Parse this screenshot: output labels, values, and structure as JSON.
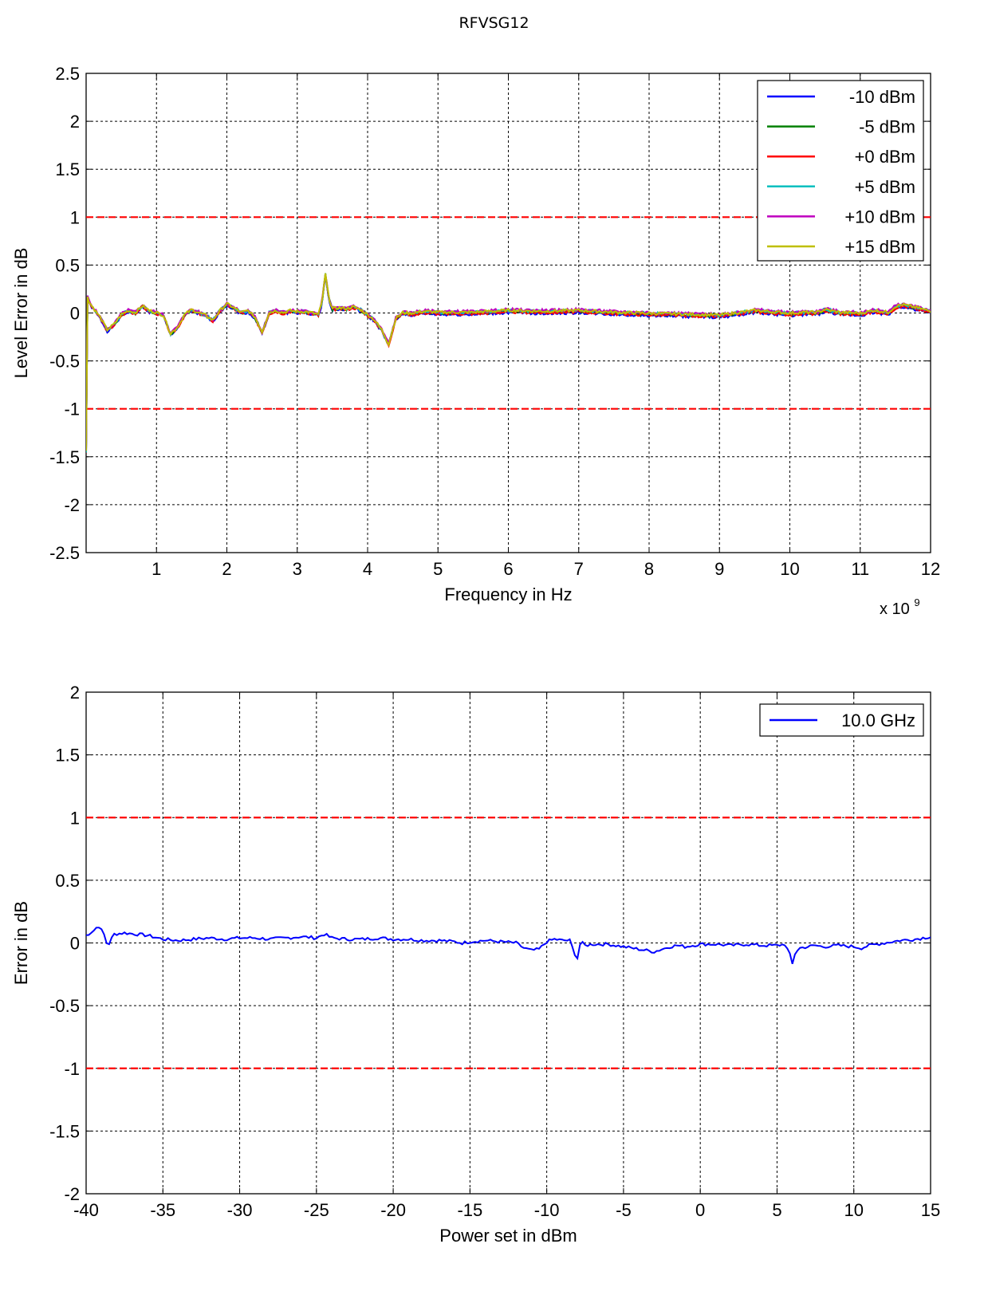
{
  "page": {
    "title": "RFVSG12"
  },
  "colors": {
    "limit": "#ff0000",
    "grid": "#000000",
    "series": {
      "-10 dBm": "#0000ff",
      "-5 dBm": "#008000",
      "+0 dBm": "#ff0000",
      "+5 dBm": "#00bfbf",
      "+10 dBm": "#bf00bf",
      "+15 dBm": "#bfbf00"
    },
    "power_sweep": "#0000ff"
  },
  "chart_data": [
    {
      "type": "line",
      "title": "",
      "xlabel": "Frequency in Hz",
      "ylabel": "Level Error in dB",
      "x_multiplier_label": "x 10",
      "x_multiplier_exponent": "9",
      "xlim": [
        0,
        12
      ],
      "ylim": [
        -2.5,
        2.5
      ],
      "grid": true,
      "legend_position": "top-right",
      "x_ticks": [
        1,
        2,
        3,
        4,
        5,
        6,
        7,
        8,
        9,
        10,
        11,
        12
      ],
      "x_tick_labels": [
        "1",
        "2",
        "3",
        "4",
        "5",
        "6",
        "7",
        "8",
        "9",
        "10",
        "11",
        "12"
      ],
      "y_ticks": [
        2.5,
        2,
        1.5,
        1,
        0.5,
        0,
        -0.5,
        -1,
        -1.5,
        -2,
        -2.5
      ],
      "y_tick_labels": [
        "2.5",
        "2",
        "1.5",
        "1",
        "0.5",
        "0",
        "-0.5",
        "-1",
        "-1.5",
        "-2",
        "-2.5"
      ],
      "limit_lines": [
        1,
        -1
      ],
      "base_profile": {
        "x": [
          0.0,
          0.02,
          0.05,
          0.1,
          0.2,
          0.3,
          0.4,
          0.5,
          0.6,
          0.7,
          0.8,
          0.9,
          1.0,
          1.1,
          1.2,
          1.3,
          1.4,
          1.5,
          1.6,
          1.7,
          1.8,
          1.9,
          2.0,
          2.1,
          2.2,
          2.3,
          2.4,
          2.5,
          2.6,
          2.7,
          2.8,
          2.9,
          3.0,
          3.1,
          3.2,
          3.3,
          3.35,
          3.4,
          3.45,
          3.5,
          3.6,
          3.7,
          3.8,
          3.9,
          4.0,
          4.1,
          4.2,
          4.3,
          4.4,
          4.5,
          4.6,
          4.7,
          4.8,
          5.0,
          5.5,
          6.0,
          6.5,
          7.0,
          7.5,
          8.0,
          8.5,
          9.0,
          9.5,
          10.0,
          10.2,
          10.4,
          10.5,
          10.7,
          11.0,
          11.2,
          11.4,
          11.5,
          11.6,
          11.8,
          12.0
        ],
        "y": [
          -1.45,
          0.17,
          0.1,
          0.05,
          -0.05,
          -0.18,
          -0.12,
          -0.02,
          0.02,
          0.0,
          0.07,
          0.02,
          0.0,
          -0.03,
          -0.22,
          -0.15,
          -0.02,
          0.03,
          0.0,
          -0.03,
          -0.08,
          0.02,
          0.09,
          0.05,
          0.0,
          0.02,
          -0.05,
          -0.2,
          0.0,
          0.02,
          0.0,
          0.02,
          0.01,
          0.01,
          0.0,
          -0.02,
          0.1,
          0.4,
          0.15,
          0.04,
          0.05,
          0.04,
          0.06,
          0.03,
          -0.02,
          -0.08,
          -0.18,
          -0.33,
          -0.06,
          0.0,
          -0.01,
          0.0,
          0.01,
          0.0,
          0.0,
          0.02,
          0.01,
          0.02,
          0.0,
          -0.01,
          -0.02,
          -0.03,
          0.02,
          -0.01,
          0.0,
          0.0,
          0.03,
          0.0,
          -0.01,
          0.02,
          0.0,
          0.06,
          0.08,
          0.05,
          0.01
        ]
      },
      "series": [
        {
          "name": "-10 dBm",
          "offset": -0.02,
          "seed": 1
        },
        {
          "name": "-5 dBm",
          "offset": 0.0,
          "seed": 2
        },
        {
          "name": "+0 dBm",
          "offset": -0.01,
          "seed": 3
        },
        {
          "name": "+5 dBm",
          "offset": 0.01,
          "seed": 4
        },
        {
          "name": "+10 dBm",
          "offset": 0.02,
          "seed": 5
        },
        {
          "name": "+15 dBm",
          "offset": 0.01,
          "seed": 6
        }
      ]
    },
    {
      "type": "line",
      "title": "",
      "xlabel": "Power set in dBm",
      "ylabel": "Error  in dB",
      "xlim": [
        -40,
        15
      ],
      "ylim": [
        -2,
        2
      ],
      "grid": true,
      "legend_position": "top-right",
      "x_ticks": [
        -40,
        -35,
        -30,
        -25,
        -20,
        -15,
        -10,
        -5,
        0,
        5,
        10,
        15
      ],
      "x_tick_labels": [
        "-40",
        "-35",
        "-30",
        "-25",
        "-20",
        "-15",
        "-10",
        "-5",
        "0",
        "5",
        "10",
        "15"
      ],
      "y_ticks": [
        2,
        1.5,
        1,
        0.5,
        0,
        -0.5,
        -1,
        -1.5,
        -2
      ],
      "y_tick_labels": [
        "2",
        "1.5",
        "1",
        "0.5",
        "0",
        "-0.5",
        "-1",
        "-1.5",
        "-2"
      ],
      "limit_lines": [
        1,
        -1
      ],
      "series": [
        {
          "name": "10.0 GHz",
          "x": [
            -40,
            -39.5,
            -39.2,
            -39.0,
            -38.8,
            -38.6,
            -38.2,
            -37.5,
            -36,
            -35,
            -34,
            -33,
            -32,
            -31,
            -30,
            -29,
            -28,
            -27,
            -26,
            -25,
            -24.5,
            -24,
            -23,
            -22,
            -21,
            -20,
            -19,
            -18,
            -17,
            -16,
            -15.5,
            -15,
            -14,
            -13,
            -12,
            -11.5,
            -11,
            -10.5,
            -10,
            -9.5,
            -9,
            -8.5,
            -8.2,
            -8.0,
            -7.8,
            -7.5,
            -7,
            -6,
            -5,
            -4.5,
            -4,
            -3.5,
            -3,
            -2.5,
            -2,
            -1.5,
            -1,
            -0.5,
            0,
            1,
            2,
            3,
            4,
            5,
            5.5,
            5.8,
            6.0,
            6.2,
            6.5,
            7,
            7.5,
            8,
            9,
            10,
            10.5,
            11,
            12,
            13,
            14,
            15
          ],
          "y": [
            0.06,
            0.1,
            0.14,
            0.1,
            0.06,
            -0.03,
            0.07,
            0.08,
            0.06,
            0.03,
            0.02,
            0.03,
            0.04,
            0.03,
            0.04,
            0.04,
            0.03,
            0.04,
            0.05,
            0.04,
            0.07,
            0.04,
            0.03,
            0.03,
            0.04,
            0.03,
            0.03,
            0.02,
            0.02,
            0.01,
            0.0,
            0.01,
            0.02,
            0.01,
            0.0,
            -0.04,
            -0.06,
            -0.05,
            0.01,
            0.03,
            0.02,
            0.02,
            -0.08,
            -0.12,
            0.01,
            -0.02,
            -0.01,
            -0.01,
            -0.03,
            -0.04,
            -0.05,
            -0.06,
            -0.07,
            -0.05,
            -0.03,
            -0.02,
            -0.03,
            -0.02,
            -0.01,
            -0.01,
            -0.02,
            -0.01,
            -0.02,
            -0.02,
            -0.01,
            -0.08,
            -0.17,
            -0.07,
            -0.04,
            -0.03,
            -0.02,
            -0.03,
            -0.02,
            -0.03,
            -0.04,
            -0.02,
            0.0,
            0.02,
            0.03,
            0.05
          ]
        }
      ]
    }
  ]
}
